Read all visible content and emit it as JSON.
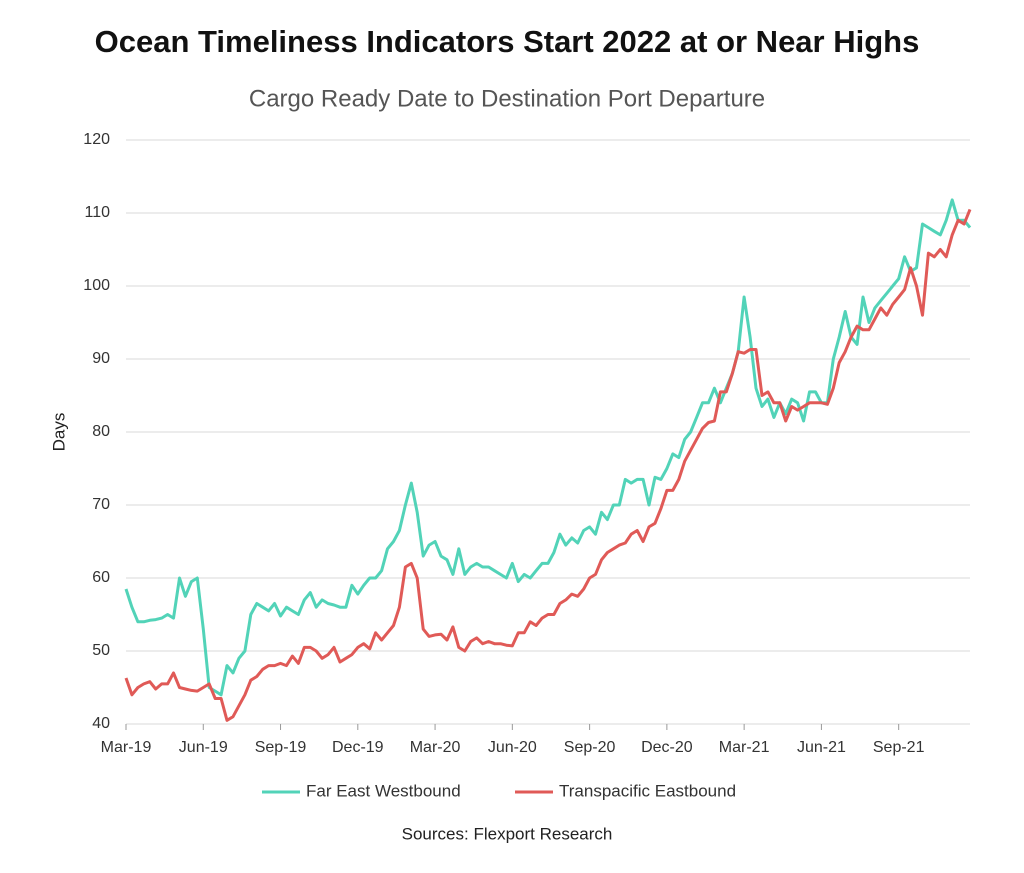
{
  "chart_data": {
    "type": "line",
    "title": "Ocean Timeliness Indicators Start 2022 at or Near Highs",
    "subtitle": "Cargo Ready Date to Destination Port Departure",
    "ylabel": "Days",
    "source": "Sources: Flexport Research",
    "categories": [
      "Mar-19",
      null,
      null,
      null,
      null,
      null,
      null,
      null,
      null,
      null,
      null,
      null,
      null,
      "Jun-19",
      null,
      null,
      null,
      null,
      null,
      null,
      null,
      null,
      null,
      null,
      null,
      null,
      "Sep-19",
      null,
      null,
      null,
      null,
      null,
      null,
      null,
      null,
      null,
      null,
      null,
      null,
      "Dec-19",
      null,
      null,
      null,
      null,
      null,
      null,
      null,
      null,
      null,
      null,
      null,
      null,
      "Mar-20",
      null,
      null,
      null,
      null,
      null,
      null,
      null,
      null,
      null,
      null,
      null,
      null,
      "Jun-20",
      null,
      null,
      null,
      null,
      null,
      null,
      null,
      null,
      null,
      null,
      null,
      null,
      "Sep-20",
      null,
      null,
      null,
      null,
      null,
      null,
      null,
      null,
      null,
      null,
      null,
      null,
      "Dec-20",
      null,
      null,
      null,
      null,
      null,
      null,
      null,
      null,
      null,
      null,
      null,
      null,
      "Mar-21",
      null,
      null,
      null,
      null,
      null,
      null,
      null,
      null,
      null,
      null,
      null,
      null,
      "Jun-21",
      null,
      null,
      null,
      null,
      null,
      null,
      null,
      null,
      null,
      null,
      null,
      null,
      "Sep-21",
      null,
      null,
      null,
      null,
      null,
      null,
      null,
      null,
      null,
      null,
      null,
      null
    ],
    "series": [
      {
        "name": "Far East Westbound",
        "color": "#52d3b8",
        "values": [
          58.5,
          56,
          54,
          54,
          54.2,
          54.3,
          54.5,
          55,
          54.5,
          60,
          57.5,
          59.5,
          60,
          53,
          45,
          44.5,
          44,
          48,
          47,
          49,
          50,
          55,
          56.5,
          56,
          55.5,
          56.5,
          54.8,
          56,
          55.5,
          55,
          57,
          58,
          56,
          57,
          56.5,
          56.3,
          56,
          56,
          59,
          57.8,
          59,
          60,
          60,
          61,
          64,
          65,
          66.5,
          70,
          73,
          69,
          63,
          64.5,
          65,
          63,
          62.5,
          60.5,
          64,
          60.5,
          61.5,
          62,
          61.5,
          61.5,
          61,
          60.5,
          60,
          62,
          59.5,
          60.5,
          60,
          61,
          62,
          62,
          63.5,
          66,
          64.5,
          65.5,
          64.8,
          66.5,
          67,
          66,
          69,
          68,
          70,
          70,
          73.5,
          73,
          73.5,
          73.5,
          70,
          73.8,
          73.5,
          75,
          77,
          76.5,
          79,
          80,
          82,
          84,
          84,
          86,
          84,
          86,
          88,
          91,
          98.5,
          93,
          86,
          83.5,
          84.5,
          82,
          84,
          82.5,
          84.5,
          84,
          81.5,
          85.5,
          85.5,
          84,
          84,
          90,
          93,
          96.5,
          93,
          92,
          98.5,
          95,
          97,
          98,
          99,
          100,
          101,
          104,
          102,
          102.5,
          108.5,
          108,
          107.5,
          107,
          109,
          111.8,
          109,
          109,
          108
        ]
      },
      {
        "name": "Transpacific Eastbound",
        "color": "#e05a57",
        "values": [
          46.3,
          44,
          45,
          45.5,
          45.8,
          44.8,
          45.5,
          45.5,
          47,
          45,
          44.8,
          44.6,
          44.5,
          45,
          45.5,
          43.5,
          43.5,
          40.5,
          41,
          42.5,
          44,
          46,
          46.5,
          47.5,
          48,
          48,
          48.3,
          48,
          49.3,
          48.3,
          50.5,
          50.5,
          50,
          49,
          49.5,
          50.5,
          48.5,
          49,
          49.5,
          50.5,
          51,
          50.3,
          52.5,
          51.5,
          52.5,
          53.5,
          56,
          61.5,
          62,
          60,
          53,
          52,
          52.2,
          52.3,
          51.5,
          53.3,
          50.5,
          50,
          51.3,
          51.8,
          51,
          51.3,
          51,
          51,
          50.8,
          50.7,
          52.5,
          52.5,
          54,
          53.5,
          54.5,
          55,
          55,
          56.5,
          57,
          57.8,
          57.5,
          58.5,
          60,
          60.5,
          62.5,
          63.5,
          64,
          64.5,
          64.8,
          66,
          66.5,
          65,
          67,
          67.5,
          69.5,
          72,
          72,
          73.5,
          76,
          77.5,
          79,
          80.5,
          81.3,
          81.5,
          85.5,
          85.5,
          88,
          91,
          90.8,
          91.3,
          91.3,
          85,
          85.5,
          84,
          84,
          81.5,
          83.5,
          83,
          83.5,
          84,
          84,
          84,
          83.8,
          86,
          89.5,
          91,
          93,
          94.5,
          94,
          94,
          95.5,
          97,
          96,
          97.5,
          98.5,
          99.5,
          102.5,
          100,
          96,
          104.5,
          104,
          105,
          104,
          107,
          109,
          108.5,
          110.5
        ]
      }
    ],
    "ylim": [
      40,
      120
    ],
    "yticks": [
      40,
      50,
      60,
      70,
      80,
      90,
      100,
      110,
      120
    ],
    "grid": true,
    "legend": "bottom"
  }
}
